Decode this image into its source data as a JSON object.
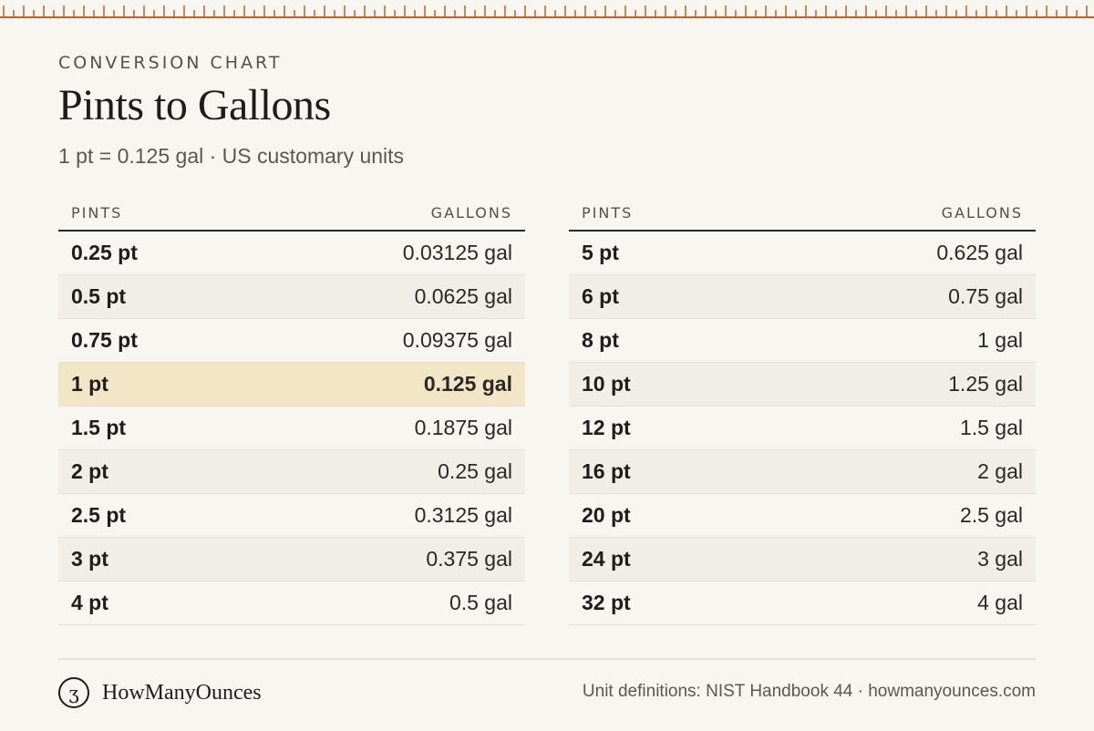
{
  "header": {
    "eyebrow": "CONVERSION CHART",
    "title": "Pints to Gallons",
    "subtitle": "1 pt = 0.125 gal · US customary units"
  },
  "tables": {
    "left": {
      "col_pints": "PINTS",
      "col_gallons": "GALLONS",
      "rows": [
        {
          "pints": "0.25 pt",
          "gallons": "0.03125 gal"
        },
        {
          "pints": "0.5 pt",
          "gallons": "0.0625 gal"
        },
        {
          "pints": "0.75 pt",
          "gallons": "0.09375 gal"
        },
        {
          "pints": "1 pt",
          "gallons": "0.125 gal"
        },
        {
          "pints": "1.5 pt",
          "gallons": "0.1875 gal"
        },
        {
          "pints": "2 pt",
          "gallons": "0.25 gal"
        },
        {
          "pints": "2.5 pt",
          "gallons": "0.3125 gal"
        },
        {
          "pints": "3 pt",
          "gallons": "0.375 gal"
        },
        {
          "pints": "4 pt",
          "gallons": "0.5 gal"
        }
      ]
    },
    "right": {
      "col_pints": "PINTS",
      "col_gallons": "GALLONS",
      "rows": [
        {
          "pints": "5 pt",
          "gallons": "0.625 gal"
        },
        {
          "pints": "6 pt",
          "gallons": "0.75 gal"
        },
        {
          "pints": "8 pt",
          "gallons": "1 gal"
        },
        {
          "pints": "10 pt",
          "gallons": "1.25 gal"
        },
        {
          "pints": "12 pt",
          "gallons": "1.5 gal"
        },
        {
          "pints": "16 pt",
          "gallons": "2 gal"
        },
        {
          "pints": "20 pt",
          "gallons": "2.5 gal"
        },
        {
          "pints": "24 pt",
          "gallons": "3 gal"
        },
        {
          "pints": "32 pt",
          "gallons": "4 gal"
        }
      ]
    }
  },
  "footer": {
    "brand_logo_glyph": "ʒ",
    "brand_name": "HowManyOunces",
    "source": "Unit definitions: NIST Handbook 44 · howmanyounces.com"
  },
  "colors": {
    "background": "#f8f6f1",
    "ruler": "#c0612b",
    "highlight_row": "#f3e6c7",
    "stripe_row": "#f1eee8"
  }
}
